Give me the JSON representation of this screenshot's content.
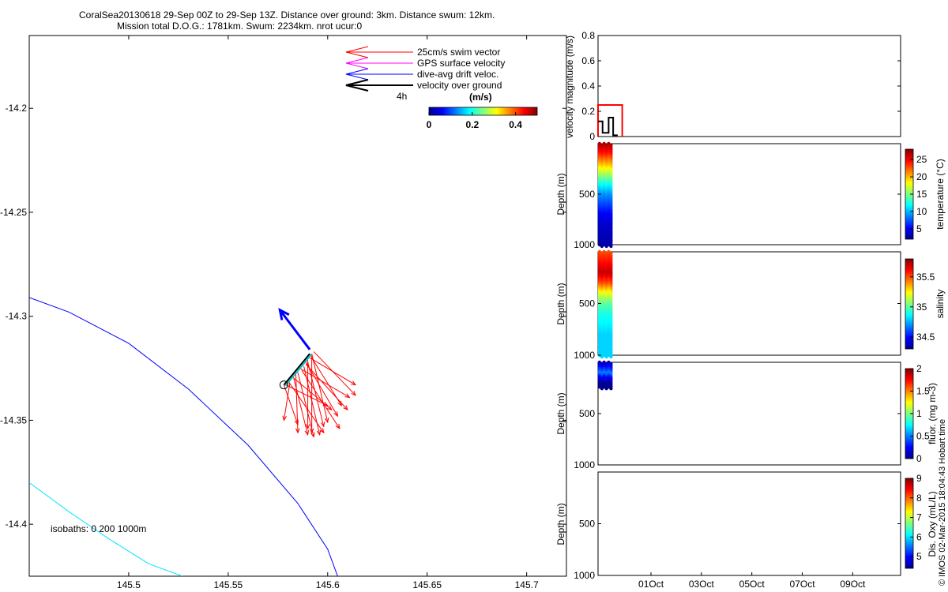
{
  "header": {
    "line1": "CoralSea20130618 29-Sep 00Z to 29-Sep 13Z. Distance over ground: 3km. Distance swum: 12km.",
    "line2": "Mission total D.O.G.: 1781km. Swum: 2234km. nrot ucur:0"
  },
  "credit": "© IMOS 02-Mar-2015 18:04:43 Hobart time",
  "colors": {
    "swim": "#ff0000",
    "gps": "#ff00ff",
    "drift": "#0000ff",
    "ground": "#000000",
    "isobath_200": "#0000ff",
    "isobath_1000": "#00e5ff"
  },
  "chart_data": [
    {
      "id": "map",
      "type": "line",
      "xlim": [
        145.45,
        145.72
      ],
      "ylim": [
        -14.425,
        -14.165
      ],
      "x_ticks": [
        "145.5",
        "145.55",
        "145.6",
        "145.65",
        "145.7"
      ],
      "x_tick_values": [
        145.5,
        145.55,
        145.6,
        145.65,
        145.7
      ],
      "y_ticks": [
        "-14.2",
        "-14.25",
        "-14.3",
        "-14.35",
        "-14.4"
      ],
      "y_tick_values": [
        -14.2,
        -14.25,
        -14.3,
        -14.35,
        -14.4
      ],
      "legend": {
        "entries": [
          {
            "label": "25cm/s swim vector",
            "color": "#ff0000"
          },
          {
            "label": "GPS surface velocity",
            "color": "#ff00ff"
          },
          {
            "label": "dive-avg drift veloc.",
            "color": "#0000ff"
          },
          {
            "label": "velocity over ground",
            "color": "#000000"
          }
        ],
        "time_label": "4h"
      },
      "colorbar": {
        "label": "(m/s)",
        "ticks": [
          "0",
          "0.2",
          "0.4"
        ],
        "tick_values": [
          0,
          0.2,
          0.4
        ],
        "range": [
          0,
          0.5
        ]
      },
      "isobath_label": "isobaths: 0   200  1000m",
      "isobaths": [
        {
          "depth": "200",
          "color": "#0000ff",
          "x": [
            145.45,
            145.47,
            145.5,
            145.53,
            145.56,
            145.585,
            145.6,
            145.605
          ],
          "y": [
            -14.291,
            -14.298,
            -14.313,
            -14.335,
            -14.362,
            -14.39,
            -14.412,
            -14.425
          ]
        },
        {
          "depth": "1000",
          "color": "#00e5ff",
          "x": [
            145.45,
            145.47,
            145.49,
            145.51,
            145.527
          ],
          "y": [
            -14.38,
            -14.394,
            -14.407,
            -14.419,
            -14.425
          ]
        }
      ],
      "ground_track": {
        "x": [
          145.578,
          145.585,
          145.591
        ],
        "y": [
          -14.333,
          -14.325,
          -14.318
        ]
      },
      "drift_vector": {
        "x": [
          145.591,
          145.576
        ],
        "y": [
          -14.316,
          -14.297
        ]
      },
      "start_marker": {
        "x": 145.578,
        "y": -14.333
      },
      "swim_vectors": [
        [
          145.578,
          -14.333,
          145.585,
          -14.352
        ],
        [
          145.58,
          -14.331,
          145.598,
          -14.356
        ],
        [
          145.582,
          -14.329,
          145.602,
          -14.345
        ],
        [
          145.585,
          -14.327,
          145.593,
          -14.358
        ],
        [
          145.586,
          -14.325,
          145.611,
          -14.339
        ],
        [
          145.588,
          -14.324,
          145.596,
          -14.357
        ],
        [
          145.589,
          -14.322,
          145.605,
          -14.348
        ],
        [
          145.59,
          -14.321,
          145.59,
          -14.354
        ],
        [
          145.591,
          -14.32,
          145.614,
          -14.333
        ],
        [
          145.592,
          -14.319,
          145.592,
          -14.356
        ],
        [
          145.592,
          -14.318,
          145.6,
          -14.351
        ],
        [
          145.593,
          -14.317,
          145.614,
          -14.338
        ],
        [
          145.581,
          -14.332,
          145.578,
          -14.35
        ],
        [
          145.583,
          -14.33,
          145.59,
          -14.357
        ],
        [
          145.587,
          -14.326,
          145.606,
          -14.354
        ],
        [
          145.59,
          -14.322,
          145.598,
          -14.353
        ],
        [
          145.592,
          -14.32,
          145.607,
          -14.343
        ],
        [
          145.579,
          -14.333,
          145.6,
          -14.343
        ],
        [
          145.584,
          -14.328,
          145.585,
          -14.356
        ],
        [
          145.589,
          -14.323,
          145.61,
          -14.345
        ]
      ]
    },
    {
      "id": "velocity",
      "type": "line",
      "ylabel": "velocity magnitude (m/s)",
      "ylim": [
        0,
        0.8
      ],
      "y_ticks": [
        "0",
        "0.2",
        "0.4",
        "0.6",
        "0.8"
      ],
      "y_tick_values": [
        0,
        0.2,
        0.4,
        0.6,
        0.8
      ],
      "series": [
        {
          "color": "#ff0000",
          "x": [
            0.0,
            0.0,
            0.08,
            0.08
          ],
          "y": [
            0.0,
            0.25,
            0.25,
            0.0
          ]
        },
        {
          "color": "#000000",
          "x": [
            0.0,
            0.015,
            0.015,
            0.035,
            0.035,
            0.05,
            0.05,
            0.065
          ],
          "y": [
            0.12,
            0.12,
            0.03,
            0.03,
            0.15,
            0.15,
            0.01,
            0.01
          ]
        }
      ]
    },
    {
      "id": "temperature",
      "type": "scatter",
      "ylabel": "Depth (m)",
      "ylim": [
        0,
        1000
      ],
      "y_ticks": [
        "500",
        "1000"
      ],
      "y_tick_values": [
        500,
        1000
      ],
      "colorbar": {
        "label": "temperature (°C)",
        "range": [
          2,
          28
        ],
        "ticks": [
          "5",
          "10",
          "15",
          "20",
          "25"
        ],
        "tick_values": [
          5,
          10,
          15,
          20,
          25
        ]
      },
      "profiles_x": [
        0.005,
        0.02,
        0.035
      ],
      "profile_max_depth": 1000,
      "profile": {
        "depth": [
          0,
          100,
          200,
          300,
          400,
          500,
          600,
          700,
          800,
          900,
          1000
        ],
        "value": [
          27,
          24,
          20,
          16,
          12,
          9,
          7,
          5,
          4,
          3.5,
          3
        ]
      }
    },
    {
      "id": "salinity",
      "type": "scatter",
      "ylabel": "Depth (m)",
      "ylim": [
        0,
        1000
      ],
      "y_ticks": [
        "500",
        "1000"
      ],
      "y_tick_values": [
        500,
        1000
      ],
      "colorbar": {
        "label": "salinity",
        "range": [
          34.3,
          35.8
        ],
        "ticks": [
          "34.5",
          "35",
          "35.5"
        ],
        "tick_values": [
          34.5,
          35,
          35.5
        ]
      },
      "profiles_x": [
        0.005,
        0.02,
        0.035
      ],
      "profile_max_depth": 1000,
      "profile": {
        "depth": [
          0,
          100,
          200,
          300,
          400,
          500,
          600,
          700,
          800,
          900,
          1000
        ],
        "value": [
          35.5,
          35.6,
          35.7,
          35.5,
          35.2,
          35.0,
          34.9,
          34.85,
          34.8,
          34.8,
          34.8
        ]
      }
    },
    {
      "id": "fluor",
      "type": "scatter",
      "ylabel": "Depth (m)",
      "ylim": [
        0,
        1000
      ],
      "y_ticks": [
        "500",
        "1000"
      ],
      "y_tick_values": [
        500,
        1000
      ],
      "colorbar": {
        "label": "fluor. (mg m-3)",
        "range": [
          0,
          2
        ],
        "ticks": [
          "0",
          "0.5",
          "1",
          "1.5",
          "2"
        ],
        "tick_values": [
          0,
          0.5,
          1,
          1.5,
          2
        ]
      },
      "profiles_x": [
        0.005,
        0.02,
        0.035
      ],
      "profile_max_depth": 240,
      "profile": {
        "depth": [
          0,
          50,
          100,
          150,
          200,
          240
        ],
        "value": [
          0.1,
          0.3,
          0.5,
          0.2,
          0.05,
          0.02
        ]
      }
    },
    {
      "id": "oxygen",
      "type": "scatter",
      "ylabel": "Depth (m)",
      "ylim": [
        0,
        1000
      ],
      "y_ticks": [
        "500",
        "1000"
      ],
      "y_tick_values": [
        500,
        1000
      ],
      "colorbar": {
        "label": "Dis. Oxy (mL/L)",
        "range": [
          4.4,
          9
        ],
        "ticks": [
          "5",
          "6",
          "7",
          "8",
          "9"
        ],
        "tick_values": [
          5,
          6,
          7,
          8,
          9
        ]
      },
      "profiles_x": [],
      "x_ticks": [
        "01Oct",
        "03Oct",
        "05Oct",
        "07Oct",
        "09Oct"
      ],
      "x_tick_values": [
        2.0,
        4.0,
        6.0,
        8.0,
        10.0
      ],
      "xlim": [
        -0.1,
        11.9
      ]
    }
  ]
}
